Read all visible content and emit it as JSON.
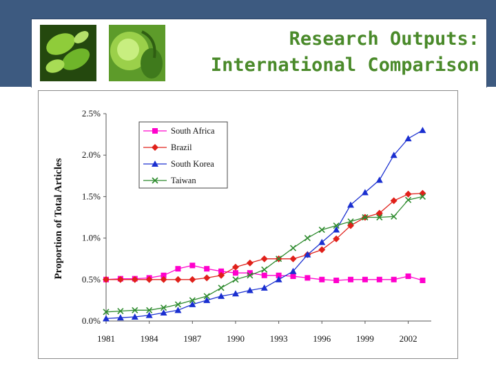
{
  "slide": {
    "title_line1": "Research Outputs:",
    "title_line2": "International Comparison"
  },
  "colors": {
    "header_band": "#3d5a80",
    "title": "#4a8a2a"
  },
  "chart_data": {
    "type": "line",
    "title": "",
    "xlabel": "",
    "ylabel": "Proportion of Total Articles",
    "x": [
      1981,
      1982,
      1983,
      1984,
      1985,
      1986,
      1987,
      1988,
      1989,
      1990,
      1991,
      1992,
      1993,
      1994,
      1995,
      1996,
      1997,
      1998,
      1999,
      2000,
      2001,
      2002,
      2003
    ],
    "xticks": [
      "1981",
      "1984",
      "1987",
      "1990",
      "1993",
      "1996",
      "1999",
      "2002"
    ],
    "yticks": [
      "0.0%",
      "0.5%",
      "1.0%",
      "1.5%",
      "2.0%",
      "2.5%"
    ],
    "ylim": [
      0,
      2.5
    ],
    "xlim": [
      1981,
      2003.6
    ],
    "legend_position": "top-left",
    "series": [
      {
        "name": "South Africa",
        "color": "#ff00cc",
        "marker": "square",
        "values": [
          0.5,
          0.51,
          0.51,
          0.52,
          0.55,
          0.63,
          0.67,
          0.63,
          0.6,
          0.58,
          0.58,
          0.55,
          0.55,
          0.54,
          0.52,
          0.5,
          0.49,
          0.5,
          0.5,
          0.5,
          0.5,
          0.54,
          0.49
        ]
      },
      {
        "name": "Brazil",
        "color": "#e0201a",
        "marker": "diamond",
        "values": [
          0.5,
          0.5,
          0.5,
          0.5,
          0.5,
          0.5,
          0.5,
          0.52,
          0.55,
          0.65,
          0.7,
          0.75,
          0.75,
          0.75,
          0.8,
          0.86,
          0.99,
          1.15,
          1.25,
          1.3,
          1.45,
          1.53,
          1.54
        ]
      },
      {
        "name": "South Korea",
        "color": "#1a2fd0",
        "marker": "triangle",
        "values": [
          0.03,
          0.04,
          0.05,
          0.07,
          0.1,
          0.13,
          0.2,
          0.25,
          0.3,
          0.33,
          0.37,
          0.4,
          0.5,
          0.6,
          0.8,
          0.95,
          1.1,
          1.4,
          1.55,
          1.7,
          2.0,
          2.2,
          2.3
        ]
      },
      {
        "name": "Taiwan",
        "color": "#2e8b2e",
        "marker": "x",
        "values": [
          0.11,
          0.12,
          0.13,
          0.13,
          0.16,
          0.2,
          0.25,
          0.3,
          0.4,
          0.5,
          0.55,
          0.62,
          0.75,
          0.88,
          1.0,
          1.1,
          1.15,
          1.2,
          1.25,
          1.25,
          1.26,
          1.46,
          1.5
        ]
      }
    ]
  }
}
